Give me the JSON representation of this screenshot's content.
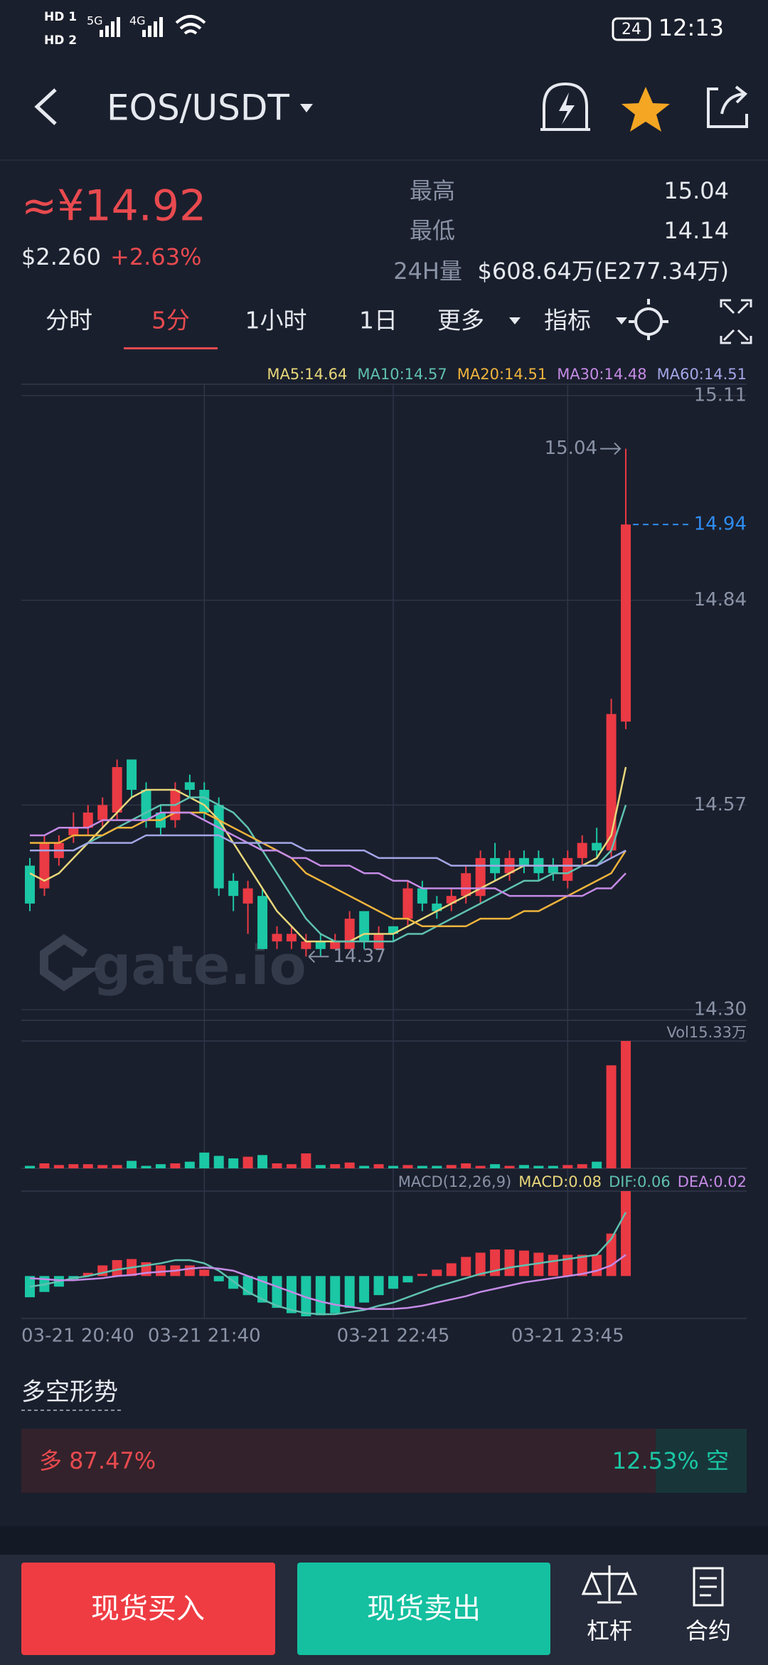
{
  "status_bar": {
    "hd_1": "HD 1",
    "hd_2": "HD 2",
    "network_1": "5G",
    "network_2": "4G",
    "battery": "24",
    "time": "12:13"
  },
  "header": {
    "pair": "EOS/USDT"
  },
  "price": {
    "cny": "≈¥14.92",
    "usd": "$2.260",
    "change": "+2.63%"
  },
  "stats": [
    {
      "label": "最高",
      "value": "15.04"
    },
    {
      "label": "最低",
      "value": "14.14"
    },
    {
      "label": "24H量",
      "value": "$608.64万(E277.34万)"
    }
  ],
  "tabs": [
    "分时",
    "5分",
    "1小时",
    "1日",
    "更多",
    "指标"
  ],
  "active_tab": "5分",
  "chart_data": [
    {
      "type": "candlestick",
      "categories": [
        "03-21 20:40",
        null,
        null,
        null,
        null,
        null,
        null,
        null,
        null,
        null,
        null,
        null,
        "03-21 21:40",
        null,
        null,
        null,
        null,
        null,
        null,
        null,
        null,
        null,
        null,
        null,
        null,
        "03-21 22:45",
        null,
        null,
        null,
        null,
        null,
        null,
        null,
        null,
        null,
        null,
        null,
        "03-21 23:45",
        null,
        null,
        null,
        null
      ],
      "open": [
        14.49,
        14.46,
        14.5,
        14.53,
        14.54,
        14.55,
        14.56,
        14.63,
        14.59,
        14.56,
        14.55,
        14.6,
        14.59,
        14.57,
        14.47,
        14.44,
        14.45,
        14.39,
        14.39,
        14.38,
        14.39,
        14.38,
        14.38,
        14.43,
        14.38,
        14.41,
        14.42,
        14.46,
        14.44,
        14.44,
        14.45,
        14.45,
        14.5,
        14.48,
        14.5,
        14.5,
        14.49,
        14.47,
        14.5,
        14.52,
        14.51,
        14.68
      ],
      "high": [
        14.5,
        14.53,
        14.53,
        14.56,
        14.57,
        14.58,
        14.63,
        14.63,
        14.6,
        14.57,
        14.6,
        14.61,
        14.6,
        14.58,
        14.48,
        14.47,
        14.46,
        14.41,
        14.41,
        14.4,
        14.4,
        14.4,
        14.43,
        14.43,
        14.41,
        14.41,
        14.47,
        14.47,
        14.45,
        14.46,
        14.49,
        14.51,
        14.52,
        14.51,
        14.51,
        14.51,
        14.5,
        14.51,
        14.53,
        14.54,
        14.71,
        15.04
      ],
      "low": [
        14.43,
        14.45,
        14.49,
        14.52,
        14.53,
        14.54,
        14.55,
        14.58,
        14.54,
        14.53,
        14.54,
        14.58,
        14.55,
        14.45,
        14.43,
        14.4,
        14.38,
        14.38,
        14.38,
        14.37,
        14.37,
        14.38,
        14.38,
        14.38,
        14.38,
        14.39,
        14.41,
        14.43,
        14.42,
        14.43,
        14.44,
        14.44,
        14.47,
        14.47,
        14.48,
        14.47,
        14.47,
        14.46,
        14.49,
        14.5,
        14.5,
        14.67
      ],
      "close": [
        14.44,
        14.52,
        14.52,
        14.54,
        14.56,
        14.57,
        14.62,
        14.59,
        14.55,
        14.54,
        14.59,
        14.59,
        14.56,
        14.46,
        14.45,
        14.46,
        14.38,
        14.4,
        14.4,
        14.39,
        14.38,
        14.39,
        14.42,
        14.39,
        14.4,
        14.4,
        14.46,
        14.44,
        14.43,
        14.45,
        14.48,
        14.5,
        14.48,
        14.5,
        14.49,
        14.48,
        14.48,
        14.5,
        14.52,
        14.51,
        14.69,
        14.94
      ],
      "up_color": "#ea3a44",
      "down_color": "#1bc7a5",
      "series": [
        {
          "name": "MA5:14.64",
          "color": "#e8d77a",
          "values": [
            14.48,
            14.47,
            14.48,
            14.5,
            14.52,
            14.54,
            14.56,
            14.58,
            14.59,
            14.59,
            14.59,
            14.58,
            14.57,
            14.55,
            14.52,
            14.49,
            14.46,
            14.43,
            14.41,
            14.39,
            14.39,
            14.39,
            14.39,
            14.4,
            14.4,
            14.4,
            14.41,
            14.42,
            14.43,
            14.44,
            14.45,
            14.46,
            14.47,
            14.48,
            14.49,
            14.49,
            14.49,
            14.49,
            14.49,
            14.5,
            14.53,
            14.62
          ]
        },
        {
          "name": "MA10:14.57",
          "color": "#5fc1b0",
          "values": [
            14.51,
            14.51,
            14.51,
            14.51,
            14.52,
            14.53,
            14.54,
            14.55,
            14.56,
            14.57,
            14.57,
            14.58,
            14.58,
            14.57,
            14.56,
            14.54,
            14.51,
            14.48,
            14.45,
            14.42,
            14.4,
            14.39,
            14.39,
            14.39,
            14.39,
            14.39,
            14.4,
            14.4,
            14.41,
            14.42,
            14.43,
            14.44,
            14.45,
            14.46,
            14.47,
            14.47,
            14.48,
            14.48,
            14.49,
            14.49,
            14.51,
            14.57
          ]
        },
        {
          "name": "MA20:14.51",
          "color": "#f1b43c",
          "values": [
            14.52,
            14.52,
            14.52,
            14.53,
            14.53,
            14.53,
            14.54,
            14.54,
            14.55,
            14.55,
            14.56,
            14.56,
            14.56,
            14.55,
            14.54,
            14.53,
            14.52,
            14.51,
            14.5,
            14.48,
            14.47,
            14.46,
            14.45,
            14.44,
            14.43,
            14.42,
            14.42,
            14.41,
            14.41,
            14.41,
            14.41,
            14.42,
            14.42,
            14.42,
            14.43,
            14.43,
            14.44,
            14.45,
            14.46,
            14.47,
            14.48,
            14.51
          ]
        },
        {
          "name": "MA30:14.48",
          "color": "#c58be6",
          "values": [
            14.53,
            14.53,
            14.54,
            14.54,
            14.54,
            14.55,
            14.55,
            14.55,
            14.55,
            14.56,
            14.56,
            14.56,
            14.55,
            14.54,
            14.53,
            14.52,
            14.51,
            14.51,
            14.5,
            14.5,
            14.49,
            14.49,
            14.49,
            14.48,
            14.48,
            14.47,
            14.47,
            14.46,
            14.46,
            14.46,
            14.46,
            14.46,
            14.46,
            14.45,
            14.45,
            14.45,
            14.45,
            14.45,
            14.45,
            14.46,
            14.46,
            14.48
          ]
        },
        {
          "name": "MA60:14.51",
          "color": "#a3a6e6",
          "values": [
            14.51,
            14.51,
            14.51,
            14.51,
            14.52,
            14.52,
            14.52,
            14.52,
            14.53,
            14.53,
            14.53,
            14.53,
            14.53,
            14.53,
            14.52,
            14.52,
            14.52,
            14.52,
            14.52,
            14.51,
            14.51,
            14.51,
            14.51,
            14.51,
            14.5,
            14.5,
            14.5,
            14.5,
            14.5,
            14.49,
            14.49,
            14.49,
            14.49,
            14.49,
            14.49,
            14.49,
            14.49,
            14.49,
            14.49,
            14.49,
            14.5,
            14.51
          ]
        }
      ],
      "ylim": [
        14.3,
        15.11
      ],
      "yticks": [
        15.11,
        14.84,
        14.57,
        {
          "value": 14.3,
          "label": "14.30"
        }
      ],
      "max_marker": 15.04,
      "min_marker": 14.37,
      "last_price": 14.94,
      "last_price_color": "#2f8cf0",
      "watermark": "gate.io"
    },
    {
      "type": "bar",
      "label": "Vol15.33万",
      "values": [
        0.3,
        0.6,
        0.4,
        0.5,
        0.5,
        0.4,
        0.4,
        0.9,
        0.3,
        0.5,
        0.6,
        0.8,
        1.9,
        1.5,
        1.2,
        1.4,
        1.6,
        0.6,
        0.5,
        1.8,
        0.4,
        0.5,
        0.7,
        0.3,
        0.5,
        0.3,
        0.4,
        0.3,
        0.3,
        0.4,
        0.6,
        0.3,
        0.5,
        0.3,
        0.4,
        0.3,
        0.3,
        0.4,
        0.5,
        0.8,
        12.4,
        15.33
      ],
      "ylim": [
        0,
        15.33
      ]
    },
    {
      "type": "macd",
      "title": "MACD(12,26,9)",
      "series": [
        {
          "name": "MACD:0.08",
          "color": "#e8d77a",
          "values": [
            -0.02,
            -0.015,
            -0.01,
            -0.003,
            0.003,
            0.01,
            0.015,
            0.016,
            0.013,
            0.01,
            0.01,
            0.01,
            0.006,
            -0.005,
            -0.012,
            -0.018,
            -0.025,
            -0.03,
            -0.035,
            -0.038,
            -0.037,
            -0.035,
            -0.03,
            -0.025,
            -0.018,
            -0.012,
            -0.006,
            0.002,
            0.006,
            0.012,
            0.018,
            0.022,
            0.025,
            0.025,
            0.024,
            0.022,
            0.02,
            0.02,
            0.02,
            0.02,
            0.04,
            0.08
          ]
        },
        {
          "name": "DIF:0.06",
          "color": "#5fc1b0",
          "values": [
            -0.01,
            -0.008,
            -0.005,
            -0.002,
            0.0,
            0.003,
            0.006,
            0.008,
            0.01,
            0.012,
            0.015,
            0.015,
            0.012,
            0.005,
            -0.005,
            -0.015,
            -0.022,
            -0.028,
            -0.032,
            -0.035,
            -0.036,
            -0.036,
            -0.034,
            -0.032,
            -0.028,
            -0.025,
            -0.02,
            -0.015,
            -0.01,
            -0.006,
            -0.002,
            0.002,
            0.005,
            0.008,
            0.01,
            0.012,
            0.014,
            0.016,
            0.018,
            0.02,
            0.035,
            0.06
          ]
        },
        {
          "name": "DEA:0.02",
          "color": "#c58be6",
          "values": [
            -0.002,
            -0.003,
            -0.004,
            -0.004,
            -0.003,
            -0.002,
            0.0,
            0.001,
            0.003,
            0.004,
            0.005,
            0.007,
            0.008,
            0.007,
            0.005,
            0.0,
            -0.005,
            -0.01,
            -0.015,
            -0.02,
            -0.024,
            -0.027,
            -0.029,
            -0.031,
            -0.031,
            -0.031,
            -0.03,
            -0.028,
            -0.025,
            -0.022,
            -0.019,
            -0.015,
            -0.012,
            -0.009,
            -0.006,
            -0.004,
            -0.002,
            0.0,
            0.002,
            0.005,
            0.01,
            0.02
          ]
        }
      ],
      "ylim": [
        -0.04,
        0.08
      ]
    }
  ],
  "long_short": {
    "title": "多空形势",
    "long": {
      "value": 87.47,
      "label": "多 87.47%"
    },
    "short": {
      "value": 12.53,
      "label": "12.53% 空"
    }
  },
  "actions": {
    "buy": "现货买入",
    "sell": "现货卖出",
    "margin": "杠杆",
    "futures": "合约"
  }
}
